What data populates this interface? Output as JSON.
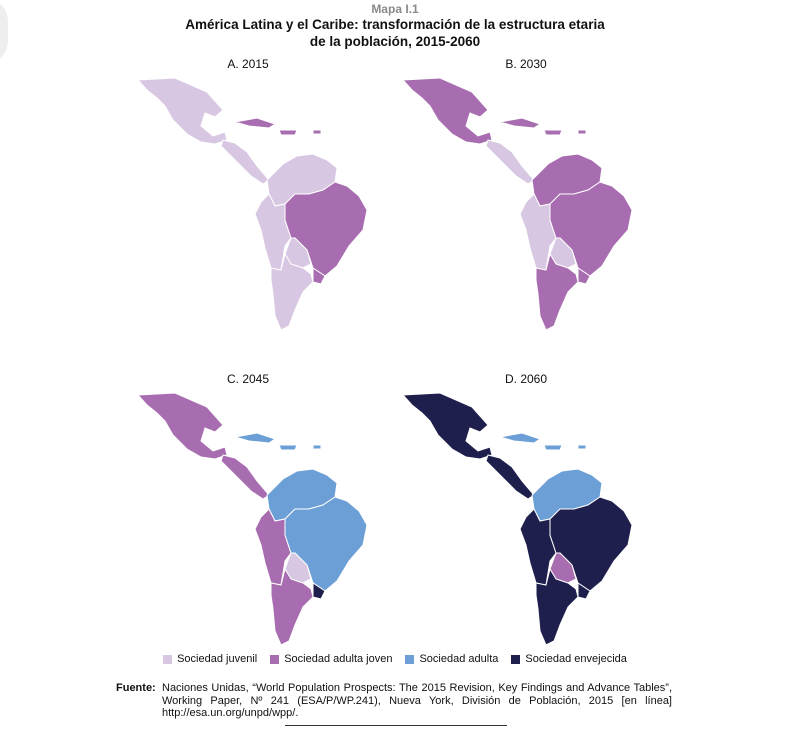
{
  "header": {
    "map_label": "Mapa I.1",
    "title_line1": "América Latina y el Caribe: transformación de la estructura etaria",
    "title_line2": "de la población, 2015-2060"
  },
  "colors": {
    "juvenil": "#d8c7e2",
    "adulta_joven": "#a86db0",
    "adulta": "#6c9fd6",
    "envejecida": "#1f1f4d",
    "border": "#ffffff"
  },
  "panels": [
    {
      "title": "A. 2015",
      "colors": {
        "mexico": "juvenil",
        "central": "juvenil",
        "caribbean": "adulta_joven",
        "north": "juvenil",
        "brazil": "adulta_joven",
        "westsouth": "juvenil",
        "bolivia": "juvenil",
        "southcone": "juvenil",
        "uruguay": "adulta_joven"
      }
    },
    {
      "title": "B. 2030",
      "colors": {
        "mexico": "adulta_joven",
        "central": "juvenil",
        "caribbean": "adulta_joven",
        "north": "adulta_joven",
        "brazil": "adulta_joven",
        "westsouth": "juvenil",
        "bolivia": "juvenil",
        "southcone": "adulta_joven",
        "uruguay": "adulta_joven"
      }
    },
    {
      "title": "C. 2045",
      "colors": {
        "mexico": "adulta_joven",
        "central": "adulta_joven",
        "caribbean": "adulta",
        "north": "adulta",
        "brazil": "adulta",
        "westsouth": "adulta_joven",
        "bolivia": "juvenil",
        "southcone": "adulta_joven",
        "uruguay": "envejecida"
      }
    },
    {
      "title": "D. 2060",
      "colors": {
        "mexico": "envejecida",
        "central": "envejecida",
        "caribbean": "adulta",
        "north": "adulta",
        "brazil": "envejecida",
        "westsouth": "envejecida",
        "bolivia": "adulta_joven",
        "southcone": "envejecida",
        "uruguay": "envejecida"
      }
    }
  ],
  "legend": [
    {
      "label": "Sociedad juvenil",
      "color": "#d8c7e2"
    },
    {
      "label": "Sociedad adulta joven",
      "color": "#a86db0"
    },
    {
      "label": "Sociedad adulta",
      "color": "#6c9fd6"
    },
    {
      "label": "Sociedad envejecida",
      "color": "#1f1f4d"
    }
  ],
  "source": {
    "label": "Fuente:",
    "text": "Naciones Unidas, “World Population Prospects: The 2015 Revision, Key Findings and Advance Tables”, Working Paper, Nº 241 (ESA/P/WP.241), Nueva York, División de Población, 2015 [en línea] http://esa.un.org/unpd/wpp/."
  }
}
